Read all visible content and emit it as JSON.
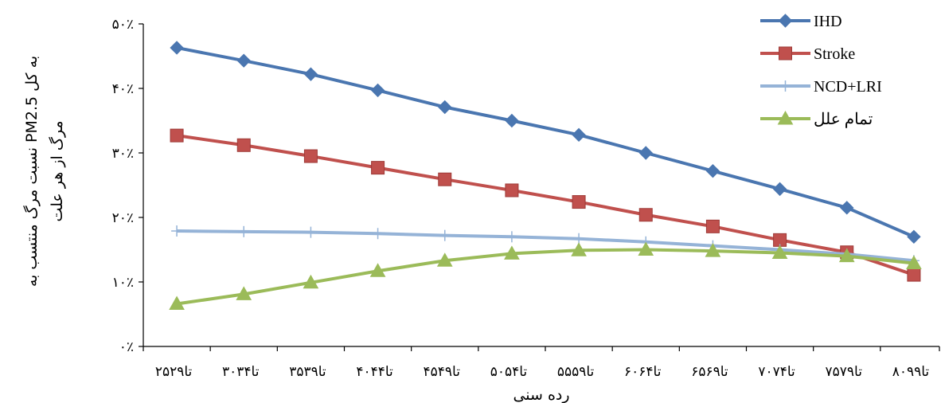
{
  "chart_data": {
    "type": "line",
    "xlabel": "رده سنی",
    "ylabel_line1": "نسبت مرگ منتسب به PM2.5 به کل",
    "ylabel_line2": "مرگ از هر علت",
    "ylim": [
      0,
      50
    ],
    "yticks": [
      0,
      10,
      20,
      30,
      40,
      50
    ],
    "ytick_labels": [
      "۰٪",
      "۱۰٪",
      "۲۰٪",
      "۳۰٪",
      "۴۰٪",
      "۵۰٪"
    ],
    "categories": [
      "۲۵تا۲۹",
      "۳۰تا۳۴",
      "۳۵تا۳۹",
      "۴۰تا۴۴",
      "۴۵تا۴۹",
      "۵۰تا۵۴",
      "۵۵تا۵۹",
      "۶۰تا۶۴",
      "۶۵تا۶۹",
      "۷۰تا۷۴",
      "۷۵تا۷۹",
      "۸۰تا۹۹"
    ],
    "series": [
      {
        "name": "IHD",
        "color": "#4a76b0",
        "marker": "diamond",
        "values": [
          46.3,
          44.3,
          42.2,
          39.7,
          37.1,
          35.0,
          32.8,
          30.0,
          27.2,
          24.4,
          21.5,
          17.0
        ]
      },
      {
        "name": "Stroke",
        "color": "#c0504d",
        "marker": "square",
        "values": [
          32.7,
          31.2,
          29.5,
          27.7,
          25.9,
          24.2,
          22.4,
          20.4,
          18.6,
          16.5,
          14.6,
          11.1
        ]
      },
      {
        "name": "NCD+LRI",
        "color": "#95b3d7",
        "marker": "plus",
        "values": [
          17.9,
          17.8,
          17.7,
          17.5,
          17.2,
          17.0,
          16.7,
          16.2,
          15.6,
          15.0,
          14.3,
          13.3
        ]
      },
      {
        "name": "تمام علل",
        "color": "#9bbb59",
        "marker": "triangle",
        "values": [
          6.6,
          8.1,
          9.9,
          11.7,
          13.3,
          14.4,
          14.9,
          15.0,
          14.8,
          14.5,
          14.0,
          12.9
        ]
      }
    ],
    "legend_position": "top-right",
    "grid": false
  }
}
